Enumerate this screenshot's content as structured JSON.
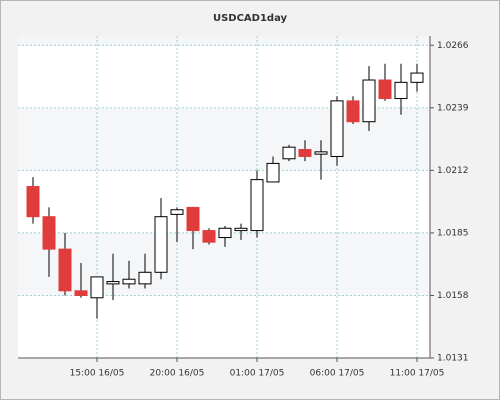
{
  "chart_data": {
    "type": "candlestick",
    "title": "USDCAD1day",
    "categories": [
      null,
      null,
      null,
      null,
      "15:00 16/05",
      null,
      null,
      null,
      null,
      "20:00 16/05",
      null,
      null,
      null,
      null,
      "01:00 17/05",
      null,
      null,
      null,
      null,
      "06:00 17/05",
      null,
      null,
      null,
      null,
      "11:00 17/05"
    ],
    "open": [
      1.0205,
      1.0192,
      1.0178,
      1.016,
      1.0157,
      1.0163,
      1.0163,
      1.0163,
      1.0168,
      1.0193,
      1.0196,
      1.0186,
      1.0183,
      1.0186,
      1.0186,
      1.0207,
      1.0217,
      1.0221,
      1.0219,
      1.0218,
      1.0242,
      1.0233,
      1.0251,
      1.0243,
      1.025
    ],
    "high": [
      1.0209,
      1.0196,
      1.0185,
      1.0172,
      1.0166,
      1.0176,
      1.0173,
      1.0176,
      1.02,
      1.0196,
      1.0196,
      1.0187,
      1.0188,
      1.0189,
      1.0212,
      1.0218,
      1.0223,
      1.0225,
      1.0225,
      1.0244,
      1.0244,
      1.0257,
      1.0258,
      1.0258,
      1.0258
    ],
    "low": [
      1.0189,
      1.0166,
      1.0158,
      1.0157,
      1.0148,
      1.0156,
      1.0161,
      1.0161,
      1.0165,
      1.0181,
      1.0178,
      1.018,
      1.0179,
      1.0182,
      1.0183,
      1.0207,
      1.0216,
      1.0216,
      1.0208,
      1.0214,
      1.0232,
      1.0229,
      1.0242,
      1.0236,
      1.0246
    ],
    "close": [
      1.0192,
      1.0178,
      1.016,
      1.0158,
      1.0166,
      1.0164,
      1.0165,
      1.0168,
      1.0192,
      1.0195,
      1.0186,
      1.0181,
      1.0187,
      1.0187,
      1.0208,
      1.0215,
      1.0222,
      1.0218,
      1.022,
      1.0242,
      1.0233,
      1.0251,
      1.0243,
      1.025,
      1.0254
    ],
    "up_color": "#ffffff",
    "down_color": "#e03c3c",
    "ylim": [
      1.0131,
      1.027
    ],
    "yticks": [
      1.0131,
      1.0158,
      1.0185,
      1.0212,
      1.0239,
      1.0266
    ],
    "grid": true
  }
}
